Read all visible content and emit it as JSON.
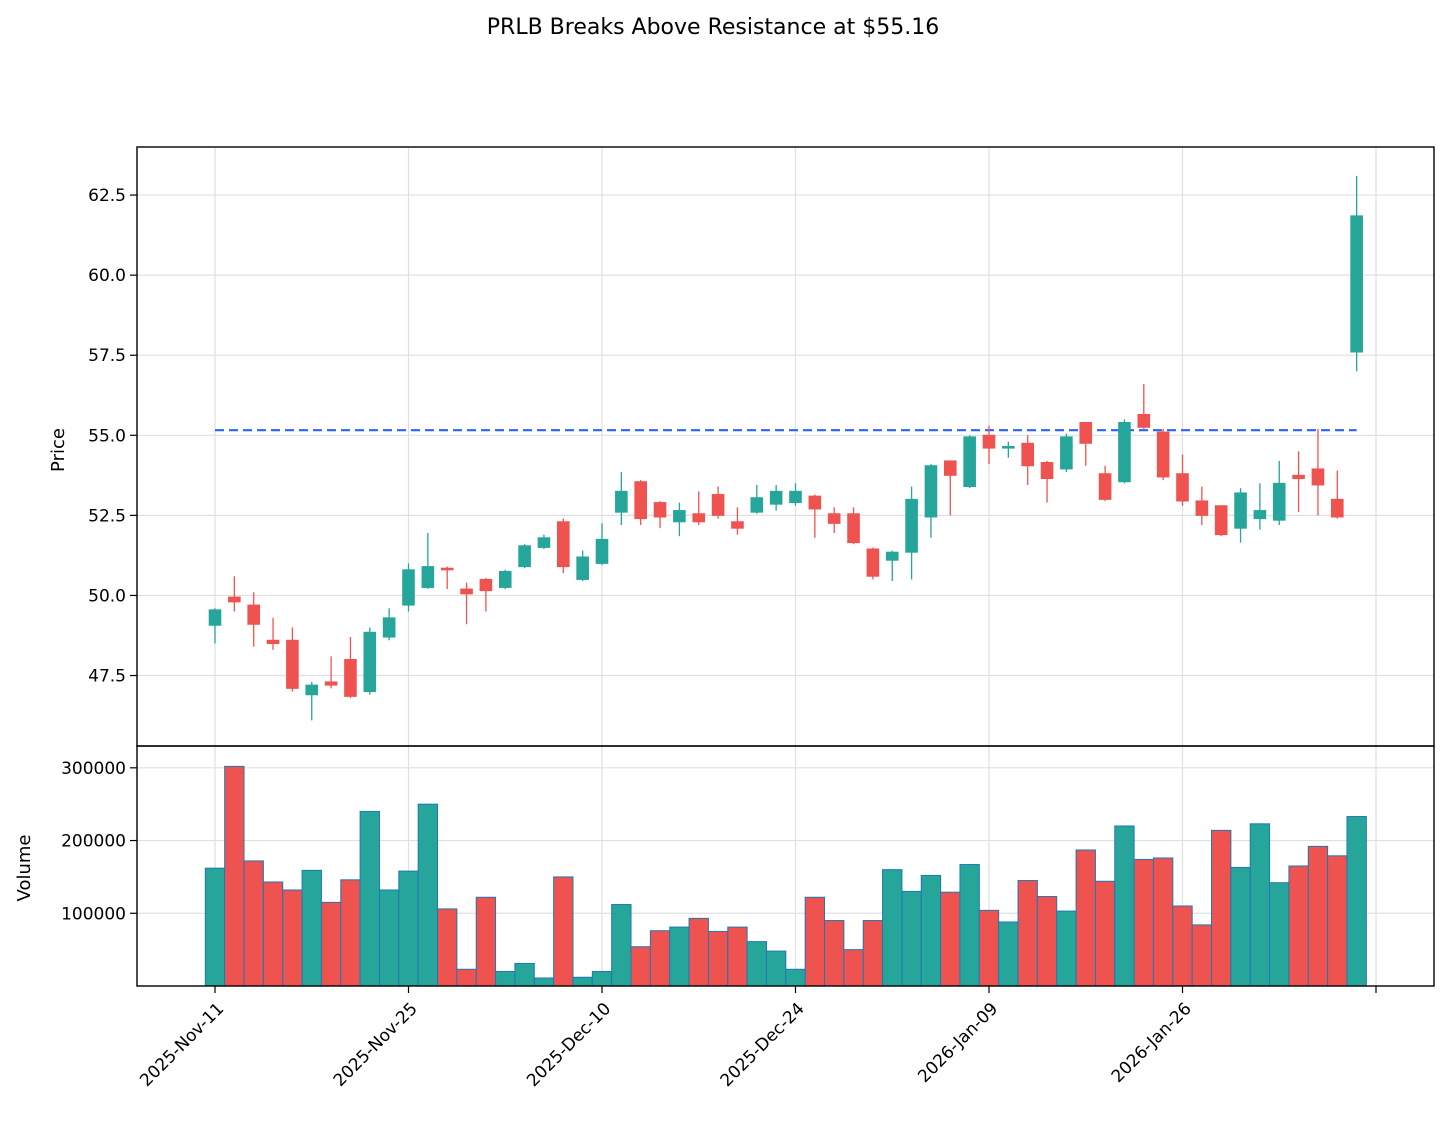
{
  "chart_data": {
    "type": "candlestick",
    "title": "PRLB Breaks Above Resistance at $55.16",
    "price_ylabel": "Price",
    "volume_ylabel": "Volume",
    "price_ylim": [
      45.3,
      64.0
    ],
    "volume_ylim": [
      0,
      330000
    ],
    "price_yticks": [
      "47.5",
      "50.0",
      "52.5",
      "55.0",
      "57.5",
      "60.0",
      "62.5"
    ],
    "volume_yticks": [
      "100000",
      "200000",
      "300000"
    ],
    "x_tick_labels": [
      "2025-Nov-11",
      "2025-Nov-25",
      "2025-Dec-10",
      "2025-Dec-24",
      "2026-Jan-09",
      "2026-Jan-26"
    ],
    "x_tick_indices": [
      0,
      10,
      20,
      30,
      40,
      50
    ],
    "resistance_level": 55.16,
    "grid": true,
    "colors": {
      "up": "#26a69a",
      "down": "#ef5350",
      "volume_edge": "#1f77b4",
      "resistance": "#2962ff",
      "grid": "#e0e0e0"
    },
    "candles": [
      {
        "o": 49.07,
        "h": 49.6,
        "l": 48.5,
        "c": 49.55,
        "v": 162000
      },
      {
        "o": 49.95,
        "h": 50.6,
        "l": 49.5,
        "c": 49.8,
        "v": 302000
      },
      {
        "o": 49.7,
        "h": 50.1,
        "l": 48.4,
        "c": 49.1,
        "v": 172000
      },
      {
        "o": 48.6,
        "h": 49.3,
        "l": 48.3,
        "c": 48.5,
        "v": 143000
      },
      {
        "o": 48.6,
        "h": 49.0,
        "l": 47.0,
        "c": 47.1,
        "v": 132000
      },
      {
        "o": 46.9,
        "h": 47.3,
        "l": 46.1,
        "c": 47.2,
        "v": 159000
      },
      {
        "o": 47.3,
        "h": 48.1,
        "l": 47.1,
        "c": 47.2,
        "v": 115000
      },
      {
        "o": 48.0,
        "h": 48.7,
        "l": 46.8,
        "c": 46.85,
        "v": 146000
      },
      {
        "o": 47.0,
        "h": 49.0,
        "l": 46.9,
        "c": 48.85,
        "v": 240000
      },
      {
        "o": 48.7,
        "h": 49.6,
        "l": 48.6,
        "c": 49.3,
        "v": 132000
      },
      {
        "o": 49.7,
        "h": 51.0,
        "l": 49.5,
        "c": 50.8,
        "v": 158000
      },
      {
        "o": 50.25,
        "h": 51.95,
        "l": 50.2,
        "c": 50.9,
        "v": 250000
      },
      {
        "o": 50.85,
        "h": 50.9,
        "l": 50.2,
        "c": 50.8,
        "v": 106000
      },
      {
        "o": 50.2,
        "h": 50.4,
        "l": 49.1,
        "c": 50.05,
        "v": 23000
      },
      {
        "o": 50.5,
        "h": 50.55,
        "l": 49.5,
        "c": 50.15,
        "v": 122000
      },
      {
        "o": 50.25,
        "h": 50.8,
        "l": 50.2,
        "c": 50.75,
        "v": 20000
      },
      {
        "o": 50.9,
        "h": 51.6,
        "l": 50.85,
        "c": 51.55,
        "v": 31000
      },
      {
        "o": 51.5,
        "h": 51.9,
        "l": 51.45,
        "c": 51.8,
        "v": 11000
      },
      {
        "o": 52.3,
        "h": 52.4,
        "l": 50.7,
        "c": 50.9,
        "v": 150000
      },
      {
        "o": 50.5,
        "h": 51.4,
        "l": 50.45,
        "c": 51.2,
        "v": 12000
      },
      {
        "o": 51.0,
        "h": 52.25,
        "l": 50.95,
        "c": 51.75,
        "v": 20000
      },
      {
        "o": 52.6,
        "h": 53.85,
        "l": 52.2,
        "c": 53.25,
        "v": 112000
      },
      {
        "o": 53.55,
        "h": 53.6,
        "l": 52.2,
        "c": 52.4,
        "v": 54000
      },
      {
        "o": 52.9,
        "h": 52.95,
        "l": 52.1,
        "c": 52.45,
        "v": 76000
      },
      {
        "o": 52.3,
        "h": 52.9,
        "l": 51.85,
        "c": 52.65,
        "v": 81000
      },
      {
        "o": 52.55,
        "h": 53.25,
        "l": 52.2,
        "c": 52.3,
        "v": 93000
      },
      {
        "o": 53.15,
        "h": 53.4,
        "l": 52.4,
        "c": 52.5,
        "v": 75000
      },
      {
        "o": 52.3,
        "h": 52.75,
        "l": 51.9,
        "c": 52.1,
        "v": 81000
      },
      {
        "o": 52.6,
        "h": 53.45,
        "l": 52.55,
        "c": 53.05,
        "v": 61000
      },
      {
        "o": 52.85,
        "h": 53.45,
        "l": 52.65,
        "c": 53.25,
        "v": 48000
      },
      {
        "o": 52.9,
        "h": 53.5,
        "l": 52.8,
        "c": 53.25,
        "v": 23000
      },
      {
        "o": 53.1,
        "h": 53.15,
        "l": 51.8,
        "c": 52.7,
        "v": 122000
      },
      {
        "o": 52.55,
        "h": 52.75,
        "l": 51.95,
        "c": 52.25,
        "v": 90000
      },
      {
        "o": 52.55,
        "h": 52.75,
        "l": 51.6,
        "c": 51.65,
        "v": 50000
      },
      {
        "o": 51.45,
        "h": 51.5,
        "l": 50.5,
        "c": 50.6,
        "v": 90000
      },
      {
        "o": 51.1,
        "h": 51.4,
        "l": 50.45,
        "c": 51.35,
        "v": 160000
      },
      {
        "o": 51.35,
        "h": 53.4,
        "l": 50.5,
        "c": 53.0,
        "v": 130000
      },
      {
        "o": 52.45,
        "h": 54.1,
        "l": 51.8,
        "c": 54.05,
        "v": 152000
      },
      {
        "o": 54.2,
        "h": 54.2,
        "l": 52.5,
        "c": 53.75,
        "v": 129000
      },
      {
        "o": 53.4,
        "h": 55.0,
        "l": 53.35,
        "c": 54.95,
        "v": 167000
      },
      {
        "o": 55.0,
        "h": 55.3,
        "l": 54.1,
        "c": 54.6,
        "v": 104000
      },
      {
        "o": 54.6,
        "h": 54.8,
        "l": 54.3,
        "c": 54.65,
        "v": 88000
      },
      {
        "o": 54.75,
        "h": 55.0,
        "l": 53.45,
        "c": 54.05,
        "v": 145000
      },
      {
        "o": 54.15,
        "h": 54.2,
        "l": 52.9,
        "c": 53.65,
        "v": 123000
      },
      {
        "o": 53.95,
        "h": 55.05,
        "l": 53.85,
        "c": 54.95,
        "v": 103000
      },
      {
        "o": 55.4,
        "h": 55.4,
        "l": 54.05,
        "c": 54.75,
        "v": 187000
      },
      {
        "o": 53.8,
        "h": 54.05,
        "l": 52.95,
        "c": 53.0,
        "v": 144000
      },
      {
        "o": 53.55,
        "h": 55.5,
        "l": 53.5,
        "c": 55.4,
        "v": 220000
      },
      {
        "o": 55.65,
        "h": 56.6,
        "l": 55.2,
        "c": 55.25,
        "v": 174000
      },
      {
        "o": 55.1,
        "h": 55.2,
        "l": 53.6,
        "c": 53.7,
        "v": 176000
      },
      {
        "o": 53.8,
        "h": 54.4,
        "l": 52.8,
        "c": 52.95,
        "v": 110000
      },
      {
        "o": 52.95,
        "h": 53.4,
        "l": 52.2,
        "c": 52.5,
        "v": 84000
      },
      {
        "o": 52.8,
        "h": 52.8,
        "l": 51.85,
        "c": 51.9,
        "v": 214000
      },
      {
        "o": 52.1,
        "h": 53.35,
        "l": 51.65,
        "c": 53.2,
        "v": 163000
      },
      {
        "o": 52.4,
        "h": 53.5,
        "l": 52.05,
        "c": 52.65,
        "v": 223000
      },
      {
        "o": 52.35,
        "h": 54.2,
        "l": 52.2,
        "c": 53.5,
        "v": 142000
      },
      {
        "o": 53.75,
        "h": 54.5,
        "l": 52.6,
        "c": 53.65,
        "v": 165000
      },
      {
        "o": 53.95,
        "h": 55.2,
        "l": 52.5,
        "c": 53.45,
        "v": 192000
      },
      {
        "o": 53.0,
        "h": 53.9,
        "l": 52.4,
        "c": 52.45,
        "v": 179000
      },
      {
        "o": 57.6,
        "h": 63.1,
        "l": 57.0,
        "c": 61.85,
        "v": 233000
      }
    ]
  }
}
